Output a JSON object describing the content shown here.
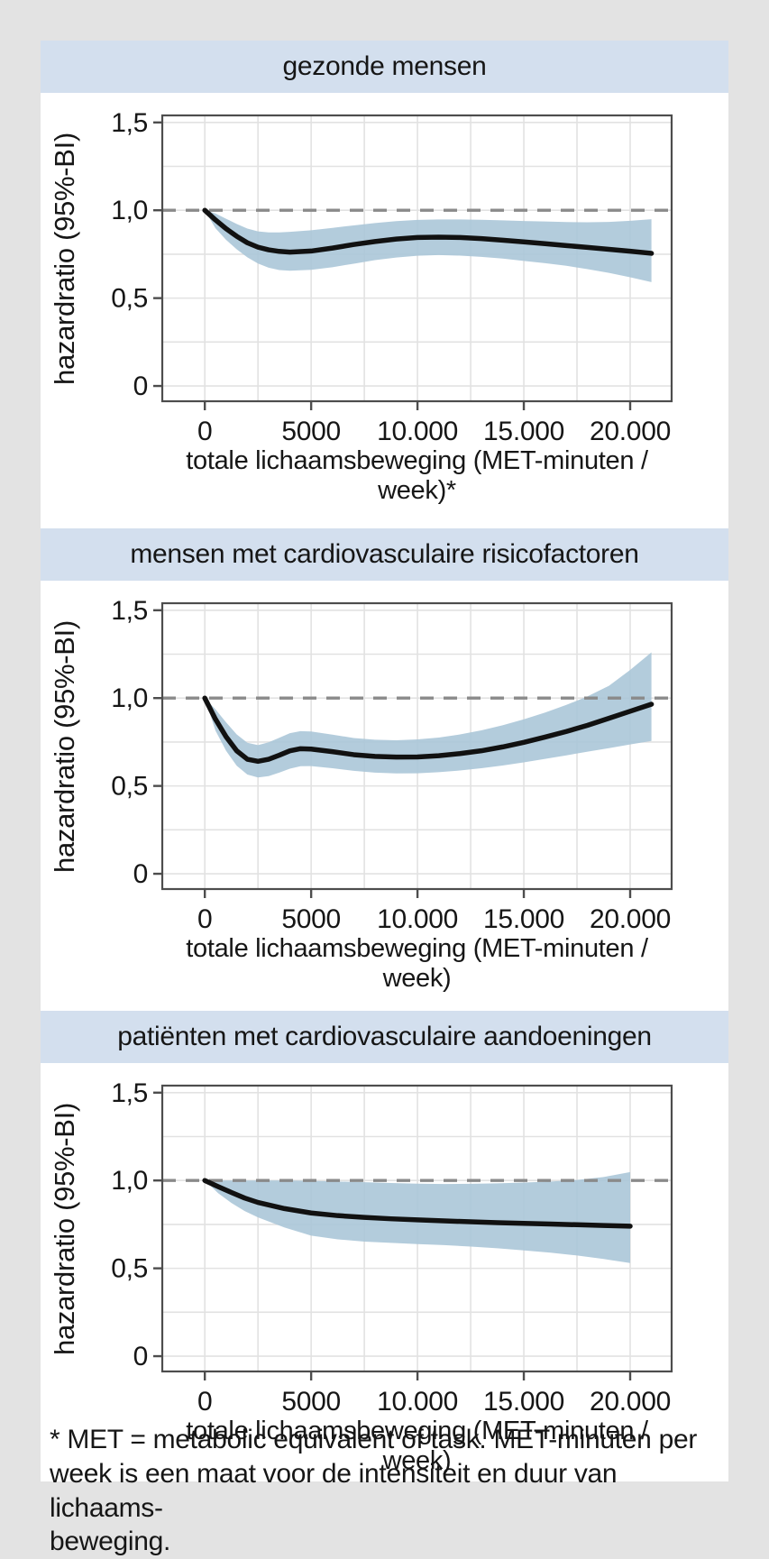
{
  "page": {
    "background": "#e3e3e3",
    "panel_background": "#ffffff",
    "header_background": "#d3dfee",
    "footnote": "* MET = metabolic equivalent of task. MET-minuten per\nweek is een maat voor de intensiteit en duur van lichaams-\nbeweging."
  },
  "colors": {
    "band": "#a9c5d7",
    "curve": "#111111",
    "reference_line": "#8a8a8a",
    "grid": "#e2e2e2",
    "axis": "#4d4d4d",
    "text": "#161616"
  },
  "chart_data": [
    {
      "type": "line",
      "title": "gezonde mensen",
      "xlabel": "totale lichaamsbeweging (MET-minuten / week)*",
      "ylabel": "hazardratio (95%-BI)",
      "xlim": [
        -2000,
        21950
      ],
      "ylim": [
        -0.087,
        1.54
      ],
      "x_grid_step": 2500,
      "y_grid_step": 0.25,
      "reference_y": 1.0,
      "x_ticks": {
        "values": [
          0,
          5000,
          10000,
          15000,
          20000
        ],
        "labels": [
          "0",
          "5000",
          "10.000",
          "15.000",
          "20.000"
        ]
      },
      "y_ticks": {
        "values": [
          0,
          0.5,
          1.0,
          1.5
        ],
        "labels": [
          "0",
          "0,5",
          "1,0",
          "1,5"
        ]
      },
      "x": [
        0,
        500,
        1000,
        1500,
        2000,
        2500,
        3000,
        3500,
        4000,
        5000,
        6000,
        7000,
        8000,
        9000,
        10000,
        11000,
        12000,
        13000,
        14000,
        15000,
        16000,
        17000,
        18000,
        19000,
        20000,
        21000
      ],
      "hr": [
        1.0,
        0.945,
        0.895,
        0.852,
        0.815,
        0.79,
        0.775,
        0.766,
        0.762,
        0.768,
        0.785,
        0.805,
        0.822,
        0.836,
        0.845,
        0.847,
        0.845,
        0.839,
        0.83,
        0.82,
        0.81,
        0.799,
        0.789,
        0.778,
        0.767,
        0.755
      ],
      "ci_low": [
        1.0,
        0.898,
        0.832,
        0.778,
        0.732,
        0.697,
        0.673,
        0.66,
        0.656,
        0.661,
        0.676,
        0.696,
        0.716,
        0.731,
        0.741,
        0.745,
        0.742,
        0.735,
        0.725,
        0.712,
        0.699,
        0.684,
        0.665,
        0.644,
        0.619,
        0.591
      ],
      "ci_high": [
        1.0,
        0.982,
        0.952,
        0.922,
        0.896,
        0.88,
        0.874,
        0.874,
        0.877,
        0.886,
        0.9,
        0.914,
        0.927,
        0.938,
        0.945,
        0.948,
        0.948,
        0.946,
        0.943,
        0.939,
        0.936,
        0.933,
        0.932,
        0.934,
        0.94,
        0.949
      ]
    },
    {
      "type": "line",
      "title": "mensen met cardiovasculaire risicofactoren",
      "xlabel": "totale lichaamsbeweging (MET-minuten / week)",
      "ylabel": "hazardratio (95%-BI)",
      "xlim": [
        -2000,
        21950
      ],
      "ylim": [
        -0.087,
        1.54
      ],
      "x_grid_step": 2500,
      "y_grid_step": 0.25,
      "reference_y": 1.0,
      "x_ticks": {
        "values": [
          0,
          5000,
          10000,
          15000,
          20000
        ],
        "labels": [
          "0",
          "5000",
          "10.000",
          "15.000",
          "20.000"
        ]
      },
      "y_ticks": {
        "values": [
          0,
          0.5,
          1.0,
          1.5
        ],
        "labels": [
          "0",
          "0,5",
          "1,0",
          "1,5"
        ]
      },
      "x": [
        0,
        500,
        1000,
        1500,
        2000,
        2500,
        3000,
        3500,
        4000,
        4500,
        5000,
        6000,
        7000,
        8000,
        9000,
        10000,
        11000,
        12000,
        13000,
        14000,
        15000,
        16000,
        17000,
        18000,
        19000,
        20000,
        21000
      ],
      "hr": [
        1.0,
        0.88,
        0.78,
        0.7,
        0.652,
        0.64,
        0.652,
        0.675,
        0.7,
        0.712,
        0.71,
        0.695,
        0.678,
        0.668,
        0.664,
        0.665,
        0.672,
        0.684,
        0.7,
        0.722,
        0.748,
        0.778,
        0.81,
        0.845,
        0.885,
        0.925,
        0.965
      ],
      "ci_low": [
        1.0,
        0.815,
        0.7,
        0.615,
        0.565,
        0.548,
        0.556,
        0.576,
        0.598,
        0.612,
        0.613,
        0.601,
        0.586,
        0.576,
        0.571,
        0.572,
        0.578,
        0.588,
        0.601,
        0.616,
        0.634,
        0.654,
        0.674,
        0.695,
        0.715,
        0.736,
        0.756
      ],
      "ci_high": [
        1.0,
        0.936,
        0.862,
        0.793,
        0.746,
        0.732,
        0.748,
        0.774,
        0.8,
        0.812,
        0.81,
        0.792,
        0.773,
        0.763,
        0.76,
        0.765,
        0.775,
        0.793,
        0.816,
        0.845,
        0.879,
        0.918,
        0.961,
        1.01,
        1.07,
        1.16,
        1.26
      ]
    },
    {
      "type": "line",
      "title": "patiënten met cardiovasculaire aandoeningen",
      "xlabel": "totale lichaamsbeweging (MET-minuten / week)",
      "ylabel": "hazardratio (95%-BI)",
      "xlim": [
        -2000,
        21950
      ],
      "ylim": [
        -0.087,
        1.54
      ],
      "x_grid_step": 2500,
      "y_grid_step": 0.25,
      "reference_y": 1.0,
      "x_ticks": {
        "values": [
          0,
          5000,
          10000,
          15000,
          20000
        ],
        "labels": [
          "0",
          "5000",
          "10.000",
          "15.000",
          "20.000"
        ]
      },
      "y_ticks": {
        "values": [
          0,
          0.5,
          1.0,
          1.5
        ],
        "labels": [
          "0",
          "0,5",
          "1,0",
          "1,5"
        ]
      },
      "x": [
        0,
        625,
        1250,
        1875,
        2500,
        3750,
        5000,
        6250,
        7500,
        8750,
        10000,
        11250,
        12500,
        13750,
        15000,
        16250,
        17500,
        18750,
        20000
      ],
      "hr": [
        1.0,
        0.965,
        0.932,
        0.9,
        0.875,
        0.84,
        0.815,
        0.8,
        0.79,
        0.782,
        0.776,
        0.77,
        0.765,
        0.76,
        0.756,
        0.752,
        0.748,
        0.744,
        0.74
      ],
      "ci_low": [
        1.0,
        0.928,
        0.872,
        0.826,
        0.79,
        0.732,
        0.686,
        0.665,
        0.652,
        0.645,
        0.638,
        0.632,
        0.624,
        0.614,
        0.602,
        0.589,
        0.573,
        0.553,
        0.53
      ],
      "ci_high": [
        1.0,
        1.0,
        1.0,
        1.0,
        1.0,
        1.0,
        0.998,
        0.994,
        0.99,
        0.986,
        0.982,
        0.98,
        0.981,
        0.984,
        0.988,
        0.994,
        1.003,
        1.02,
        1.048
      ]
    }
  ]
}
